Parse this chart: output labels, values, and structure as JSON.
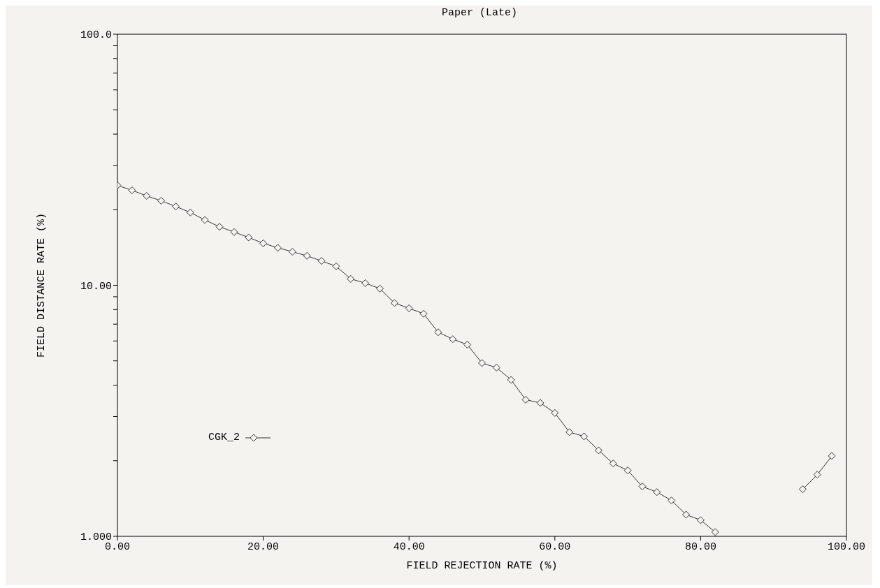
{
  "chart_data": {
    "type": "line",
    "title": "Paper (Late)",
    "xlabel": "FIELD REJECTION RATE (%)",
    "ylabel": "FIELD DISTANCE RATE (%)",
    "x": [
      0,
      2,
      4,
      6,
      8,
      10,
      12,
      14,
      16,
      18,
      20,
      22,
      24,
      26,
      28,
      30,
      32,
      34,
      36,
      38,
      40,
      42,
      44,
      46,
      48,
      50,
      52,
      54,
      56,
      58,
      60,
      62,
      64,
      66,
      68,
      70,
      72,
      74,
      76,
      78,
      80,
      82,
      84,
      86,
      88,
      90,
      92,
      94,
      96,
      98
    ],
    "series": [
      {
        "name": "CGK_2",
        "color": "#333333",
        "values": [
          25,
          23.9,
          22.7,
          21.7,
          20.6,
          19.5,
          18.2,
          17.1,
          16.3,
          15.5,
          14.7,
          14.1,
          13.6,
          13.1,
          12.5,
          11.9,
          10.6,
          10.2,
          9.7,
          8.5,
          8.1,
          7.7,
          6.5,
          6.1,
          5.8,
          4.9,
          4.7,
          4.2,
          3.5,
          3.4,
          3.1,
          2.6,
          2.5,
          2.2,
          1.95,
          1.83,
          1.58,
          1.5,
          1.39,
          1.22,
          1.16,
          1.04,
          null,
          null,
          null,
          null,
          null,
          1.54,
          1.76,
          2.09
        ]
      }
    ],
    "xlim": [
      0,
      100
    ],
    "xticks": [
      {
        "value": 0,
        "label": "0.00"
      },
      {
        "value": 20,
        "label": "20.00"
      },
      {
        "value": 40,
        "label": "40.00"
      },
      {
        "value": 60,
        "label": "60.00"
      },
      {
        "value": 80,
        "label": "80.00"
      },
      {
        "value": 100,
        "label": "100.00"
      }
    ],
    "ylim": [
      1,
      100
    ],
    "log": true,
    "yticks": [
      {
        "value": 1,
        "label": "1.000"
      },
      {
        "value": 2,
        "label": null
      },
      {
        "value": 3,
        "label": null
      },
      {
        "value": 4,
        "label": null
      },
      {
        "value": 5,
        "label": null
      },
      {
        "value": 6,
        "label": null
      },
      {
        "value": 7,
        "label": null
      },
      {
        "value": 8,
        "label": null
      },
      {
        "value": 9,
        "label": null
      },
      {
        "value": 10,
        "label": "10.00"
      },
      {
        "value": 20,
        "label": null
      },
      {
        "value": 30,
        "label": null
      },
      {
        "value": 40,
        "label": null
      },
      {
        "value": 50,
        "label": null
      },
      {
        "value": 60,
        "label": null
      },
      {
        "value": 70,
        "label": null
      },
      {
        "value": 80,
        "label": null
      },
      {
        "value": 90,
        "label": null
      },
      {
        "value": 100,
        "label": "100.0"
      }
    ],
    "marker": "diamond",
    "line_style": "solid",
    "legend": "center left",
    "grid": false
  }
}
